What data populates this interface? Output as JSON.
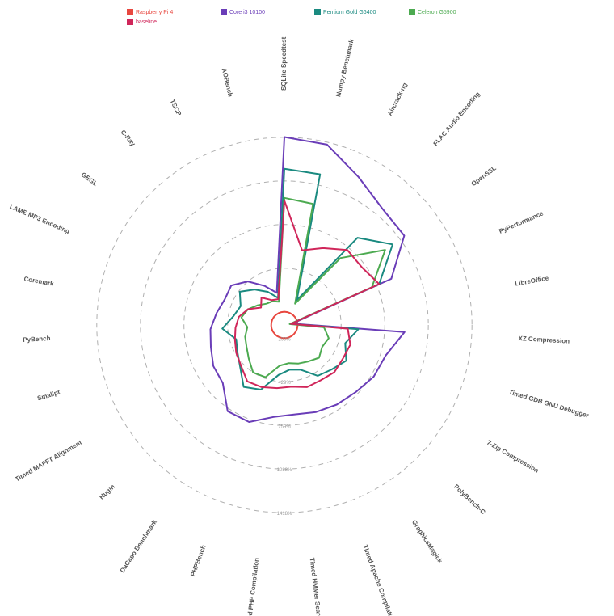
{
  "chart_data": {
    "type": "radar",
    "title": "",
    "legend": {
      "placement": "top-left",
      "entries": [
        {
          "name": "Raspberry Pi 4",
          "color": "#e8473f"
        },
        {
          "name": "Core i3 10100",
          "color": "#6a3db8"
        },
        {
          "name": "Pentium Gold G6400",
          "color": "#1a8a80"
        },
        {
          "name": "Celeron G5900",
          "color": "#4caa50"
        },
        {
          "name": "baseline",
          "color": "#d0265a"
        }
      ]
    },
    "ring_labels": [
      "100%",
      "429%",
      "759%",
      "1088%",
      "1418%"
    ],
    "ring_values": [
      100,
      429,
      759,
      1088,
      1418
    ],
    "scale_max": 1600,
    "axes": [
      "SQLite Speedtest",
      "Numpy Benchmark",
      "Aircrack-ng",
      "FLAC Audio Encoding",
      "OpenSSL",
      "PyPerformance",
      "LibreOffice",
      "XZ Compression",
      "Timed GDB GNU Debugger",
      "7-Zip Compression",
      "PolyBench-C",
      "GraphicsMagick",
      "Timed Apache Compilation",
      "Timed HMMer Search",
      "Timed PHP Compilation",
      "PHPBench",
      "DaCapo Benchmark",
      "Hugin",
      "Timed MAFFT Alignment",
      "Smallpt",
      "PyBench",
      "Coremark",
      "LAME MP3 Encoding",
      "GEGL",
      "C-Ray",
      "TSCP",
      "AOBench"
    ],
    "series": [
      {
        "name": "Raspberry Pi 4",
        "color": "#e8473f",
        "values": [
          100,
          100,
          100,
          100,
          100,
          100,
          100,
          100,
          100,
          100,
          100,
          100,
          100,
          100,
          100,
          100,
          100,
          100,
          100,
          100,
          100,
          100,
          100,
          100,
          100,
          100,
          100
        ]
      },
      {
        "name": "Core i3 10100",
        "color": "#6a3db8",
        "values": [
          1420,
          1400,
          1250,
          1150,
          1130,
          880,
          60,
          910,
          800,
          780,
          740,
          720,
          700,
          680,
          700,
          780,
          780,
          640,
          620,
          580,
          560,
          520,
          490,
          500,
          430,
          330,
          250
        ]
      },
      {
        "name": "Pentium Gold G6400",
        "color": "#1a8a80",
        "values": [
          1180,
          1170,
          210,
          860,
          1020,
          780,
          50,
          560,
          480,
          540,
          490,
          460,
          360,
          340,
          380,
          520,
          560,
          460,
          410,
          380,
          470,
          390,
          360,
          420,
          350,
          280,
          210
        ]
      },
      {
        "name": "Celeron G5900",
        "color": "#4caa50",
        "values": [
          960,
          940,
          180,
          660,
          950,
          720,
          40,
          300,
          350,
          330,
          360,
          330,
          310,
          290,
          310,
          420,
          430,
          370,
          330,
          310,
          280,
          330,
          300,
          250,
          210,
          200,
          180
        ]
      },
      {
        "name": "baseline",
        "color": "#d0265a",
        "values": [
          940,
          580,
          650,
          740,
          730,
          780,
          50,
          480,
          520,
          510,
          520,
          500,
          500,
          470,
          480,
          500,
          510,
          450,
          420,
          390,
          370,
          350,
          300,
          220,
          270,
          210,
          200
        ]
      }
    ]
  }
}
